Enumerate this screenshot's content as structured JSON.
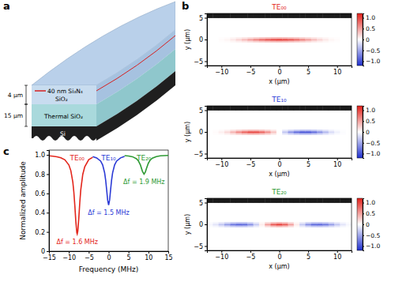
{
  "panel_labels": [
    "a",
    "b",
    "c"
  ],
  "diagram": {
    "core": "40 nm Si₃N₄",
    "cladding": "SiO₂",
    "cladding_thickness": "4 μm",
    "box_thickness": "15 μm",
    "box": "Thermal SiO₂",
    "substrate": "Si"
  },
  "chart_data": [
    {
      "type": "heatmap",
      "title": "TE₀₀",
      "color": "#e3261c",
      "x_label": "x (μm)",
      "y_label": "y (μm)",
      "xlim": [
        -12.5,
        12.5
      ],
      "ylim": [
        -6,
        6
      ],
      "xticks": [
        {
          "value": -10,
          "label": "−10"
        },
        {
          "value": -5,
          "label": "−5"
        },
        0,
        5,
        10
      ],
      "yticks": [
        {
          "value": -5,
          "label": "−5"
        },
        0,
        5
      ],
      "xbins": [
        -12.5,
        -11.5,
        -10.5,
        -9.5,
        -8.5,
        -7.5,
        -6.5,
        -5.5,
        -4.5,
        -3.5,
        -2.5,
        -1.5,
        -0.5,
        0.5,
        1.5,
        2.5,
        3.5,
        4.5,
        5.5,
        6.5,
        7.5,
        8.5,
        9.5,
        10.5,
        11.5,
        12.5
      ],
      "ybins": [
        -6,
        -0.6,
        -0.2,
        0.2,
        0.6,
        5,
        6
      ],
      "cells": [
        [
          0,
          0,
          0,
          0,
          0,
          0,
          0,
          0,
          0,
          0,
          0,
          0,
          0,
          0,
          0,
          0,
          0,
          0,
          0,
          0,
          0,
          0,
          0,
          0,
          0
        ],
        [
          0,
          0,
          0.01,
          0.02,
          0.05,
          0.09,
          0.14,
          0.2,
          0.26,
          0.31,
          0.35,
          0.38,
          0.4,
          0.38,
          0.35,
          0.31,
          0.26,
          0.2,
          0.14,
          0.09,
          0.05,
          0.02,
          0.01,
          0,
          0
        ],
        [
          0,
          0,
          0.02,
          0.05,
          0.12,
          0.22,
          0.35,
          0.5,
          0.64,
          0.77,
          0.88,
          0.96,
          1,
          0.96,
          0.88,
          0.77,
          0.64,
          0.5,
          0.35,
          0.22,
          0.12,
          0.05,
          0.02,
          0,
          0
        ],
        [
          0,
          0,
          0.01,
          0.02,
          0.05,
          0.09,
          0.14,
          0.2,
          0.26,
          0.31,
          0.35,
          0.38,
          0.4,
          0.38,
          0.35,
          0.31,
          0.26,
          0.2,
          0.14,
          0.09,
          0.05,
          0.02,
          0.01,
          0,
          0
        ],
        [
          0,
          0,
          0,
          0,
          0,
          0,
          0,
          0,
          0,
          0,
          0,
          0,
          0,
          0,
          0,
          0,
          0,
          0,
          0,
          0,
          0,
          0,
          0,
          0,
          0
        ],
        [
          null,
          null,
          null,
          null,
          null,
          null,
          null,
          null,
          null,
          null,
          null,
          null,
          null,
          null,
          null,
          null,
          null,
          null,
          null,
          null,
          null,
          null,
          null,
          null,
          null
        ]
      ],
      "colorbar_range": [
        -1.2,
        1.2
      ],
      "colorbar_ticks": [
        {
          "value": -1,
          "label": "−1.0"
        },
        {
          "value": -0.5,
          "label": "−0.5"
        },
        0,
        0.5,
        {
          "value": 1,
          "label": "1.0"
        }
      ]
    },
    {
      "type": "heatmap",
      "title": "TE₁₀",
      "color": "#2b3ad6",
      "x_label": "x (μm)",
      "y_label": "y (μm)",
      "xlim": [
        -12.5,
        12.5
      ],
      "ylim": [
        -6,
        6
      ],
      "xticks": [
        {
          "value": -10,
          "label": "−10"
        },
        {
          "value": -5,
          "label": "−5"
        },
        0,
        5,
        10
      ],
      "yticks": [
        {
          "value": -5,
          "label": "−5"
        },
        0,
        5
      ],
      "xbins": [
        -12.5,
        -11.5,
        -10.5,
        -9.5,
        -8.5,
        -7.5,
        -6.5,
        -5.5,
        -4.5,
        -3.5,
        -2.5,
        -1.5,
        -0.5,
        0.5,
        1.5,
        2.5,
        3.5,
        4.5,
        5.5,
        6.5,
        7.5,
        8.5,
        9.5,
        10.5,
        11.5,
        12.5
      ],
      "ybins": [
        -6,
        -0.6,
        -0.2,
        0.2,
        0.6,
        5,
        6
      ],
      "cells": [
        [
          0,
          0,
          0,
          0,
          0,
          0,
          0,
          0,
          0,
          0,
          0,
          0,
          0,
          0,
          0,
          0,
          0,
          0,
          0,
          0,
          0,
          0,
          0,
          0,
          0
        ],
        [
          0,
          0.01,
          0.03,
          0.08,
          0.16,
          0.25,
          0.33,
          0.38,
          0.38,
          0.33,
          0.24,
          0.13,
          0,
          -0.13,
          -0.24,
          -0.33,
          -0.38,
          -0.38,
          -0.33,
          -0.25,
          -0.16,
          -0.08,
          -0.03,
          -0.01,
          0
        ],
        [
          0,
          0.02,
          0.08,
          0.2,
          0.4,
          0.62,
          0.82,
          0.95,
          0.95,
          0.82,
          0.6,
          0.32,
          0,
          -0.32,
          -0.6,
          -0.82,
          -0.95,
          -0.95,
          -0.82,
          -0.62,
          -0.4,
          -0.2,
          -0.08,
          -0.02,
          0
        ],
        [
          0,
          0.01,
          0.03,
          0.08,
          0.16,
          0.25,
          0.33,
          0.38,
          0.38,
          0.33,
          0.24,
          0.13,
          0,
          -0.13,
          -0.24,
          -0.33,
          -0.38,
          -0.38,
          -0.33,
          -0.25,
          -0.16,
          -0.08,
          -0.03,
          -0.01,
          0
        ],
        [
          0,
          0,
          0,
          0,
          0,
          0,
          0,
          0,
          0,
          0,
          0,
          0,
          0,
          0,
          0,
          0,
          0,
          0,
          0,
          0,
          0,
          0,
          0,
          0,
          0
        ],
        [
          null,
          null,
          null,
          null,
          null,
          null,
          null,
          null,
          null,
          null,
          null,
          null,
          null,
          null,
          null,
          null,
          null,
          null,
          null,
          null,
          null,
          null,
          null,
          null,
          null
        ]
      ],
      "colorbar_range": [
        -1.2,
        1.2
      ],
      "colorbar_ticks": [
        {
          "value": -1,
          "label": "−1.0"
        },
        {
          "value": -0.5,
          "label": "−0.5"
        },
        0,
        0.5,
        {
          "value": 1,
          "label": "1.0"
        }
      ]
    },
    {
      "type": "heatmap",
      "title": "TE₂₀",
      "color": "#2e9a34",
      "x_label": "x (μm)",
      "y_label": "y (μm)",
      "xlim": [
        -12.5,
        12.5
      ],
      "ylim": [
        -6,
        6
      ],
      "xticks": [
        {
          "value": -10,
          "label": "−10"
        },
        {
          "value": -5,
          "label": "−5"
        },
        0,
        5,
        10
      ],
      "yticks": [
        {
          "value": -5,
          "label": "−5"
        },
        0,
        5
      ],
      "xbins": [
        -12.5,
        -11.5,
        -10.5,
        -9.5,
        -8.5,
        -7.5,
        -6.5,
        -5.5,
        -4.5,
        -3.5,
        -2.5,
        -1.5,
        -0.5,
        0.5,
        1.5,
        2.5,
        3.5,
        4.5,
        5.5,
        6.5,
        7.5,
        8.5,
        9.5,
        10.5,
        11.5,
        12.5
      ],
      "ybins": [
        -6,
        -0.6,
        -0.2,
        0.2,
        0.6,
        5,
        6
      ],
      "cells": [
        [
          0,
          0,
          0,
          0,
          0,
          0,
          0,
          0,
          0,
          0,
          0,
          0,
          0,
          0,
          0,
          0,
          0,
          0,
          0,
          0,
          0,
          0,
          0,
          0,
          0
        ],
        [
          -0.02,
          -0.06,
          -0.13,
          -0.22,
          -0.3,
          -0.34,
          -0.33,
          -0.25,
          -0.12,
          0.04,
          0.2,
          0.34,
          0.4,
          0.34,
          0.2,
          0.04,
          -0.12,
          -0.25,
          -0.33,
          -0.34,
          -0.3,
          -0.22,
          -0.13,
          -0.06,
          -0.02
        ],
        [
          -0.05,
          -0.15,
          -0.32,
          -0.55,
          -0.75,
          -0.85,
          -0.82,
          -0.62,
          -0.3,
          0.1,
          0.5,
          0.85,
          1,
          0.85,
          0.5,
          0.1,
          -0.3,
          -0.62,
          -0.82,
          -0.85,
          -0.75,
          -0.55,
          -0.32,
          -0.15,
          -0.05
        ],
        [
          -0.02,
          -0.06,
          -0.13,
          -0.22,
          -0.3,
          -0.34,
          -0.33,
          -0.25,
          -0.12,
          0.04,
          0.2,
          0.34,
          0.4,
          0.34,
          0.2,
          0.04,
          -0.12,
          -0.25,
          -0.33,
          -0.34,
          -0.3,
          -0.22,
          -0.13,
          -0.06,
          -0.02
        ],
        [
          0,
          0,
          0,
          0,
          0,
          0,
          0,
          0,
          0,
          0,
          0,
          0,
          0,
          0,
          0,
          0,
          0,
          0,
          0,
          0,
          0,
          0,
          0,
          0,
          0
        ],
        [
          null,
          null,
          null,
          null,
          null,
          null,
          null,
          null,
          null,
          null,
          null,
          null,
          null,
          null,
          null,
          null,
          null,
          null,
          null,
          null,
          null,
          null,
          null,
          null,
          null
        ]
      ],
      "colorbar_range": [
        -1.2,
        1.2
      ],
      "colorbar_ticks": [
        {
          "value": -1,
          "label": "−1.0"
        },
        {
          "value": -0.5,
          "label": "−0.5"
        },
        0,
        0.5,
        {
          "value": 1,
          "label": "1.0"
        }
      ]
    },
    {
      "type": "line",
      "x_label": "Frequency (MHz)",
      "y_label": "Normalized amplitude",
      "xlim": [
        -15,
        15
      ],
      "ylim": [
        0,
        1.05
      ],
      "xticks": [
        {
          "value": -15,
          "label": "−15"
        },
        {
          "value": -10,
          "label": "−10"
        },
        {
          "value": -5,
          "label": "−5"
        },
        0,
        5,
        10,
        15
      ],
      "yticks": [
        0,
        0.2,
        0.4,
        0.6,
        0.8,
        {
          "value": 1,
          "label": "1.0"
        }
      ],
      "series": [
        {
          "name": "TE₀₀",
          "color": "#e3261c",
          "x": [
            -15,
            -14,
            -13,
            -12,
            -11,
            -10,
            -9.5,
            -9,
            -8.75,
            -8.5,
            -8.25,
            -8,
            -7.9,
            -7.75,
            -7.5,
            -7.25,
            -7,
            -6.5,
            -6,
            -5,
            -4
          ],
          "values": [
            0.99,
            0.986,
            0.98,
            0.97,
            0.949,
            0.896,
            0.836,
            0.716,
            0.615,
            0.475,
            0.311,
            0.193,
            0.18,
            0.208,
            0.344,
            0.506,
            0.639,
            0.798,
            0.877,
            0.95,
            0.975
          ]
        },
        {
          "name": "TE₁₀",
          "color": "#2b3ad6",
          "x": [
            -4,
            -3,
            -2,
            -1.5,
            -1,
            -0.75,
            -0.5,
            -0.25,
            0,
            0.25,
            0.5,
            0.75,
            1,
            1.5,
            2,
            3,
            4
          ],
          "values": [
            0.982,
            0.969,
            0.936,
            0.896,
            0.813,
            0.74,
            0.64,
            0.532,
            0.48,
            0.532,
            0.64,
            0.74,
            0.813,
            0.896,
            0.936,
            0.969,
            0.985
          ]
        },
        {
          "name": "TE₂₀",
          "color": "#2e9a34",
          "x": [
            4,
            5,
            6,
            7,
            7.5,
            8,
            8.5,
            8.9,
            9.25,
            9.5,
            10,
            10.5,
            11,
            12,
            13,
            14,
            15
          ],
          "values": [
            0.993,
            0.989,
            0.981,
            0.96,
            0.937,
            0.895,
            0.83,
            0.8,
            0.824,
            0.857,
            0.915,
            0.948,
            0.966,
            0.983,
            0.99,
            0.993,
            0.995
          ]
        }
      ],
      "annotations": [
        "Δf = 1.6 MHz",
        "Δf = 1.5 MHz",
        "Δf = 1.9 MHz"
      ]
    }
  ]
}
